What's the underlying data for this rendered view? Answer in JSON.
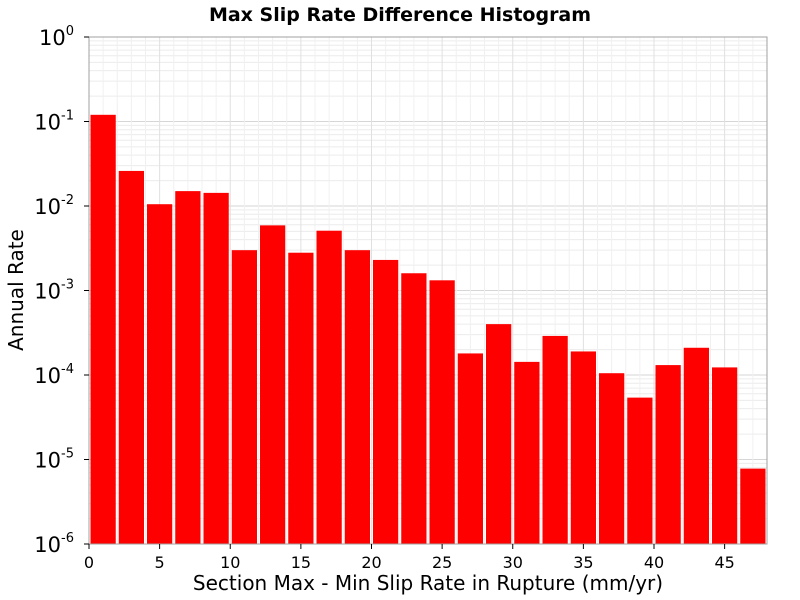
{
  "chart_data": {
    "type": "bar",
    "title": "Max Slip Rate Difference Histogram",
    "xlabel": "Section Max - Min Slip Rate in Rupture (mm/yr)",
    "ylabel": "Annual Rate",
    "xlim": [
      0,
      48
    ],
    "ylim": [
      1e-06,
      1
    ],
    "yscale": "log",
    "bin_width": 2,
    "bar_color": "#ff0000",
    "grid": true,
    "x_ticks": [
      0,
      5,
      10,
      15,
      20,
      25,
      30,
      35,
      40,
      45
    ],
    "y_ticks": [
      {
        "value": 1e-06,
        "base": "10",
        "exp": "-6"
      },
      {
        "value": 1e-05,
        "base": "10",
        "exp": "-5"
      },
      {
        "value": 0.0001,
        "base": "10",
        "exp": "-4"
      },
      {
        "value": 0.001,
        "base": "10",
        "exp": "-3"
      },
      {
        "value": 0.01,
        "base": "10",
        "exp": "-2"
      },
      {
        "value": 0.1,
        "base": "10",
        "exp": "-1"
      },
      {
        "value": 1,
        "base": "10",
        "exp": "0"
      }
    ],
    "x": [
      1,
      3,
      5,
      7,
      9,
      11,
      13,
      15,
      17,
      19,
      21,
      23,
      25,
      27,
      29,
      31,
      33,
      35,
      37,
      39,
      41,
      43,
      45,
      47
    ],
    "values": [
      0.12,
      0.026,
      0.0105,
      0.015,
      0.0143,
      0.003,
      0.0059,
      0.0028,
      0.0051,
      0.003,
      0.0023,
      0.0016,
      0.00132,
      0.00018,
      0.0004,
      0.000143,
      0.00029,
      0.00019,
      0.000105,
      5.4e-05,
      0.000131,
      0.00021,
      0.000123,
      7.8e-06
    ]
  }
}
